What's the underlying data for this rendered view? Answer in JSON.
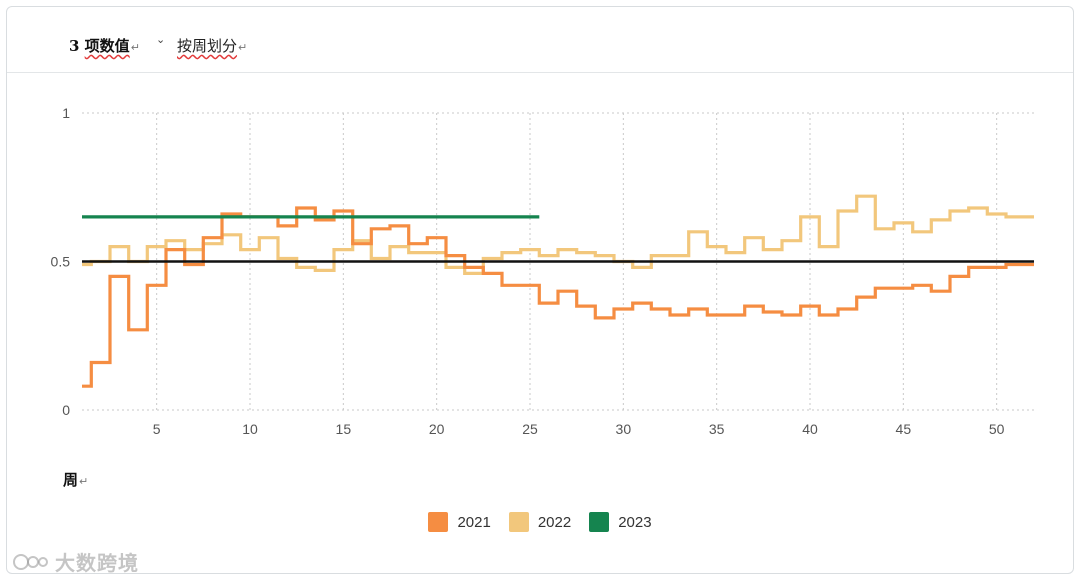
{
  "header": {
    "title_num": "3",
    "title_word": "项数值",
    "subtitle": "按周划分",
    "para_mark": "↵",
    "caret": "⌄"
  },
  "watermark": {
    "text": "大数跨境"
  },
  "colors": {
    "2021": "#f58d42",
    "2022": "#f2c77c",
    "2023": "#15844f",
    "reference": "#111111",
    "grid": "#c9c9c9",
    "tick_text": "#555555"
  },
  "chart_data": {
    "type": "line",
    "step": true,
    "title": "3 项数值 按周划分",
    "xlabel": "周",
    "ylabel": "",
    "xlim": [
      1,
      52
    ],
    "ylim": [
      0,
      1
    ],
    "xticks": [
      5,
      10,
      15,
      20,
      25,
      30,
      35,
      40,
      45,
      50
    ],
    "yticks": [
      0,
      0.5,
      1
    ],
    "ytick_labels": [
      "0",
      "0.5",
      "1"
    ],
    "grid": true,
    "legend_position": "bottom-center",
    "reference_line": {
      "y": 0.5,
      "label": ""
    },
    "series": [
      {
        "name": "2021",
        "x": [
          1,
          2,
          3,
          4,
          5,
          6,
          7,
          8,
          9,
          10,
          11,
          12,
          13,
          14,
          15,
          16,
          17,
          18,
          19,
          20,
          21,
          22,
          23,
          24,
          25,
          26,
          27,
          28,
          29,
          30,
          31,
          32,
          33,
          34,
          35,
          36,
          37,
          38,
          39,
          40,
          41,
          42,
          43,
          44,
          45,
          46,
          47,
          48,
          49,
          50,
          51,
          52
        ],
        "values": [
          0.08,
          0.16,
          0.45,
          0.27,
          0.42,
          0.54,
          0.49,
          0.58,
          0.66,
          0.65,
          0.65,
          0.62,
          0.68,
          0.64,
          0.67,
          0.56,
          0.61,
          0.62,
          0.56,
          0.58,
          0.52,
          0.48,
          0.46,
          0.42,
          0.42,
          0.36,
          0.4,
          0.35,
          0.31,
          0.34,
          0.36,
          0.34,
          0.32,
          0.34,
          0.32,
          0.32,
          0.35,
          0.33,
          0.32,
          0.35,
          0.32,
          0.34,
          0.38,
          0.41,
          0.41,
          0.42,
          0.4,
          0.45,
          0.48,
          0.48,
          0.49,
          0.49
        ]
      },
      {
        "name": "2022",
        "x": [
          1,
          2,
          3,
          4,
          5,
          6,
          7,
          8,
          9,
          10,
          11,
          12,
          13,
          14,
          15,
          16,
          17,
          18,
          19,
          20,
          21,
          22,
          23,
          24,
          25,
          26,
          27,
          28,
          29,
          30,
          31,
          32,
          33,
          34,
          35,
          36,
          37,
          38,
          39,
          40,
          41,
          42,
          43,
          44,
          45,
          46,
          47,
          48,
          49,
          50,
          51,
          52
        ],
        "values": [
          0.49,
          0.5,
          0.55,
          0.5,
          0.55,
          0.57,
          0.54,
          0.56,
          0.59,
          0.54,
          0.58,
          0.51,
          0.48,
          0.47,
          0.54,
          0.57,
          0.51,
          0.55,
          0.53,
          0.53,
          0.48,
          0.46,
          0.51,
          0.53,
          0.54,
          0.52,
          0.54,
          0.53,
          0.52,
          0.5,
          0.48,
          0.52,
          0.52,
          0.6,
          0.55,
          0.53,
          0.58,
          0.54,
          0.57,
          0.65,
          0.55,
          0.67,
          0.72,
          0.61,
          0.63,
          0.6,
          0.64,
          0.67,
          0.68,
          0.66,
          0.65,
          0.65
        ]
      },
      {
        "name": "2023",
        "x": [
          1,
          2,
          3,
          4,
          5,
          6,
          7,
          8,
          9,
          10,
          11,
          12,
          13,
          14,
          15,
          16,
          17,
          18,
          19,
          20,
          21,
          22,
          23,
          24,
          25
        ],
        "values": [
          0.65,
          0.65,
          0.65,
          0.65,
          0.65,
          0.65,
          0.65,
          0.65,
          0.65,
          0.65,
          0.65,
          0.65,
          0.65,
          0.65,
          0.65,
          0.65,
          0.65,
          0.65,
          0.65,
          0.65,
          0.65,
          0.65,
          0.65,
          0.65,
          0.65
        ]
      }
    ]
  }
}
